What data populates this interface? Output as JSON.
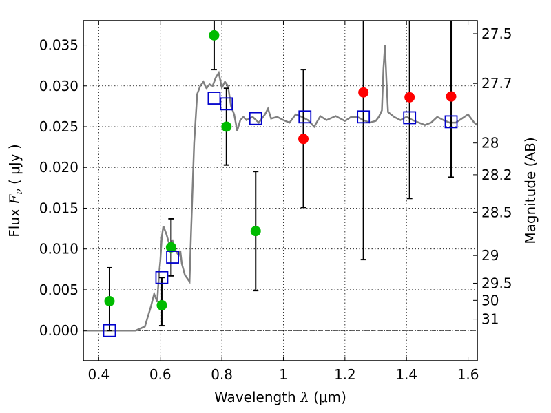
{
  "chart_data": {
    "type": "scatter",
    "xlabel_text": "Wavelength ",
    "xlabel_math": "λ",
    "xlabel_unit": " (μm)",
    "ylabel_text": "Flux  ",
    "ylabel_math": "F",
    "ylabel_sub": "ν",
    "ylabel_unit": "  ( μJy )",
    "y2label": "Magnitude (AB)",
    "xlim": [
      0.35,
      1.63
    ],
    "ylim": [
      -0.0037,
      0.038
    ],
    "grid": true,
    "xticks": [
      0.4,
      0.6,
      0.8,
      1.0,
      1.2,
      1.4,
      1.6
    ],
    "xtick_labels": [
      "0.4",
      "0.6",
      "0.8",
      "1",
      "1.2",
      "1.4",
      "1.6"
    ],
    "yticks": [
      0.0,
      0.005,
      0.01,
      0.015,
      0.02,
      0.025,
      0.03,
      0.035
    ],
    "ytick_labels": [
      "0.000",
      "0.005",
      "0.010",
      "0.015",
      "0.020",
      "0.025",
      "0.030",
      "0.035"
    ],
    "y2ticks": [
      {
        "label": "27.5",
        "flux": 0.0364
      },
      {
        "label": "27.7",
        "flux": 0.0303
      },
      {
        "label": "28",
        "flux": 0.023
      },
      {
        "label": "28.2",
        "flux": 0.0191
      },
      {
        "label": "28.5",
        "flux": 0.0145
      },
      {
        "label": "29",
        "flux": 0.0092
      },
      {
        "label": "29.5",
        "flux": 0.0058
      },
      {
        "label": "30",
        "flux": 0.0037
      },
      {
        "label": "31",
        "flux": 0.0014
      }
    ],
    "colors": {
      "model": "#808080",
      "green": "#00bb00",
      "red": "#ff0000",
      "square": "#0000cc",
      "error": "#000000",
      "zero_line": "#000000",
      "grid": "#000000"
    },
    "model_spectrum": [
      [
        0.35,
        0.0
      ],
      [
        0.52,
        0.0
      ],
      [
        0.55,
        0.0005
      ],
      [
        0.57,
        0.003
      ],
      [
        0.58,
        0.0045
      ],
      [
        0.59,
        0.0035
      ],
      [
        0.595,
        0.0065
      ],
      [
        0.6,
        0.0085
      ],
      [
        0.605,
        0.0115
      ],
      [
        0.61,
        0.0128
      ],
      [
        0.62,
        0.0118
      ],
      [
        0.63,
        0.0105
      ],
      [
        0.64,
        0.011
      ],
      [
        0.65,
        0.0098
      ],
      [
        0.66,
        0.0092
      ],
      [
        0.665,
        0.0098
      ],
      [
        0.67,
        0.0082
      ],
      [
        0.68,
        0.0068
      ],
      [
        0.695,
        0.006
      ],
      [
        0.7,
        0.012
      ],
      [
        0.71,
        0.023
      ],
      [
        0.72,
        0.029
      ],
      [
        0.73,
        0.03
      ],
      [
        0.74,
        0.0305
      ],
      [
        0.75,
        0.0297
      ],
      [
        0.76,
        0.0302
      ],
      [
        0.77,
        0.03
      ],
      [
        0.78,
        0.031
      ],
      [
        0.79,
        0.0316
      ],
      [
        0.8,
        0.0298
      ],
      [
        0.81,
        0.0305
      ],
      [
        0.82,
        0.03
      ],
      [
        0.83,
        0.0275
      ],
      [
        0.84,
        0.0265
      ],
      [
        0.85,
        0.0245
      ],
      [
        0.86,
        0.0258
      ],
      [
        0.87,
        0.0262
      ],
      [
        0.88,
        0.0258
      ],
      [
        0.9,
        0.0262
      ],
      [
        0.92,
        0.0255
      ],
      [
        0.94,
        0.0265
      ],
      [
        0.95,
        0.0272
      ],
      [
        0.96,
        0.026
      ],
      [
        0.98,
        0.0262
      ],
      [
        1.0,
        0.0258
      ],
      [
        1.02,
        0.0255
      ],
      [
        1.04,
        0.0265
      ],
      [
        1.06,
        0.0262
      ],
      [
        1.08,
        0.0258
      ],
      [
        1.1,
        0.025
      ],
      [
        1.12,
        0.0263
      ],
      [
        1.14,
        0.0258
      ],
      [
        1.17,
        0.0263
      ],
      [
        1.2,
        0.0257
      ],
      [
        1.22,
        0.0262
      ],
      [
        1.24,
        0.0262
      ],
      [
        1.26,
        0.0258
      ],
      [
        1.28,
        0.0255
      ],
      [
        1.3,
        0.0257
      ],
      [
        1.31,
        0.0262
      ],
      [
        1.32,
        0.027
      ],
      [
        1.325,
        0.032
      ],
      [
        1.33,
        0.035
      ],
      [
        1.335,
        0.0305
      ],
      [
        1.34,
        0.0268
      ],
      [
        1.36,
        0.0262
      ],
      [
        1.38,
        0.0258
      ],
      [
        1.4,
        0.0262
      ],
      [
        1.42,
        0.0258
      ],
      [
        1.44,
        0.0255
      ],
      [
        1.46,
        0.0252
      ],
      [
        1.48,
        0.0255
      ],
      [
        1.5,
        0.0262
      ],
      [
        1.52,
        0.0258
      ],
      [
        1.54,
        0.0255
      ],
      [
        1.56,
        0.0255
      ],
      [
        1.58,
        0.026
      ],
      [
        1.6,
        0.0265
      ],
      [
        1.62,
        0.0255
      ],
      [
        1.63,
        0.0252
      ]
    ],
    "green_points": [
      {
        "x": 0.435,
        "y": 0.0036
      },
      {
        "x": 0.605,
        "y": 0.0031
      },
      {
        "x": 0.635,
        "y": 0.0102
      },
      {
        "x": 0.775,
        "y": 0.0362
      },
      {
        "x": 0.815,
        "y": 0.025
      },
      {
        "x": 0.91,
        "y": 0.0122
      }
    ],
    "red_points": [
      {
        "x": 1.065,
        "y": 0.0235
      },
      {
        "x": 1.26,
        "y": 0.0292
      },
      {
        "x": 1.41,
        "y": 0.0286
      },
      {
        "x": 1.545,
        "y": 0.0287
      }
    ],
    "model_squares": [
      {
        "x": 0.435,
        "y": 0.0
      },
      {
        "x": 0.605,
        "y": 0.0065
      },
      {
        "x": 0.64,
        "y": 0.009
      },
      {
        "x": 0.775,
        "y": 0.0285
      },
      {
        "x": 0.815,
        "y": 0.0278
      },
      {
        "x": 0.91,
        "y": 0.026
      },
      {
        "x": 1.07,
        "y": 0.0262
      },
      {
        "x": 1.26,
        "y": 0.0262
      },
      {
        "x": 1.41,
        "y": 0.0261
      },
      {
        "x": 1.545,
        "y": 0.0256
      }
    ],
    "error_bars": [
      {
        "x": 0.435,
        "lo": 0.0,
        "hi": 0.0077
      },
      {
        "x": 0.605,
        "lo": 0.0006,
        "hi": 0.0065
      },
      {
        "x": 0.635,
        "lo": 0.0067,
        "hi": 0.0137
      },
      {
        "x": 0.775,
        "lo": 0.032,
        "hi": 0.038,
        "open_top": true
      },
      {
        "x": 0.815,
        "lo": 0.0203,
        "hi": 0.0297
      },
      {
        "x": 0.91,
        "lo": 0.0049,
        "hi": 0.0195
      },
      {
        "x": 1.065,
        "lo": 0.0151,
        "hi": 0.032
      },
      {
        "x": 1.26,
        "lo": 0.0087,
        "hi": 0.038,
        "open_top": true
      },
      {
        "x": 1.41,
        "lo": 0.0162,
        "hi": 0.038,
        "open_top": true
      },
      {
        "x": 1.545,
        "lo": 0.0188,
        "hi": 0.038,
        "open_top": true
      }
    ]
  }
}
